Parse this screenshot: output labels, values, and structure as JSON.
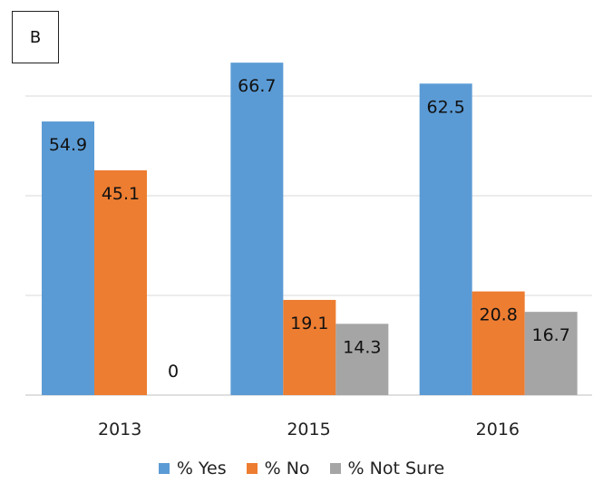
{
  "panel_label": "B",
  "chart_data": {
    "type": "bar",
    "categories": [
      "2013",
      "2015",
      "2016"
    ],
    "series": [
      {
        "name": "% Yes",
        "color": "#5b9bd5",
        "values": [
          54.9,
          66.7,
          62.5
        ]
      },
      {
        "name": "% No",
        "color": "#ed7d31",
        "values": [
          45.1,
          19.1,
          20.8
        ]
      },
      {
        "name": "% Not Sure",
        "color": "#a5a5a5",
        "values": [
          0,
          14.3,
          16.7
        ]
      }
    ],
    "ylim": [
      0,
      75
    ],
    "gridlines": [
      0,
      20,
      40,
      60
    ],
    "grid": true,
    "y_tick_labels_shown": false,
    "legend_position": "bottom"
  }
}
